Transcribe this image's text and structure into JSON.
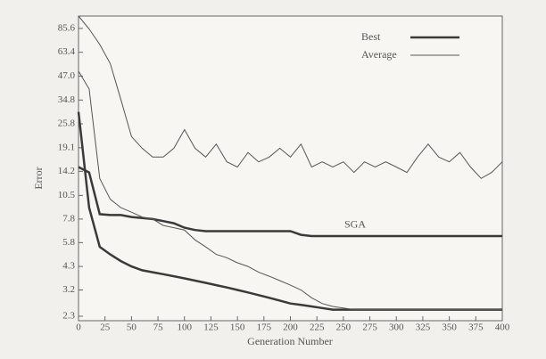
{
  "chart_data": {
    "type": "line",
    "log_y": true,
    "xlabel": "Generation Number",
    "ylabel": "Error",
    "annotation": "SGA",
    "x": [
      0,
      10,
      20,
      30,
      40,
      50,
      60,
      70,
      80,
      90,
      100,
      110,
      120,
      130,
      140,
      150,
      160,
      170,
      180,
      190,
      200,
      210,
      220,
      230,
      240,
      250,
      260,
      270,
      280,
      290,
      300,
      310,
      320,
      330,
      340,
      350,
      360,
      370,
      380,
      390,
      400
    ],
    "xlim": [
      0,
      400
    ],
    "xticks": [
      0,
      25,
      50,
      75,
      100,
      125,
      150,
      175,
      200,
      225,
      250,
      275,
      300,
      325,
      350,
      375,
      400
    ],
    "ylim": [
      2.3,
      100
    ],
    "yticks": [
      2.3,
      3.2,
      4.3,
      5.8,
      7.8,
      10.5,
      14.2,
      19.1,
      25.8,
      34.8,
      {
        "value": 47,
        "label": "47.0"
      },
      63.4,
      85.6
    ],
    "series": [
      {
        "name": "Best",
        "color": "#3a3a3a",
        "width": 2.5,
        "values": [
          15,
          14,
          8.3,
          8.2,
          8.2,
          8.0,
          7.9,
          7.8,
          7.6,
          7.4,
          7.0,
          6.8,
          6.7,
          6.7,
          6.7,
          6.7,
          6.7,
          6.7,
          6.7,
          6.7,
          6.7,
          6.4,
          6.3,
          6.3,
          6.3,
          6.3,
          6.3,
          6.3,
          6.3,
          6.3,
          6.3,
          6.3,
          6.3,
          6.3,
          6.3,
          6.3,
          6.3,
          6.3,
          6.3,
          6.3,
          6.3
        ]
      },
      {
        "name": "Average",
        "color": "#555555",
        "width": 1,
        "values": [
          100,
          85,
          70,
          55,
          35,
          22,
          19,
          17,
          17,
          19,
          24,
          19,
          17,
          20,
          16,
          15,
          18,
          16,
          17,
          19,
          17,
          20,
          15,
          16,
          15,
          16,
          14,
          16,
          15,
          16,
          15,
          14,
          17,
          20,
          17,
          16,
          18,
          15,
          13,
          14,
          16
        ]
      },
      {
        "color": "#3a3a3a",
        "width": 2.5,
        "values": [
          30,
          9,
          5.5,
          5,
          4.6,
          4.3,
          4.1,
          4.0,
          3.9,
          3.8,
          3.7,
          3.6,
          3.5,
          3.4,
          3.3,
          3.2,
          3.1,
          3.0,
          2.9,
          2.8,
          2.7,
          2.65,
          2.6,
          2.55,
          2.5,
          2.5,
          2.5,
          2.5,
          2.5,
          2.5,
          2.5,
          2.5,
          2.5,
          2.5,
          2.5,
          2.5,
          2.5,
          2.5,
          2.5,
          2.5,
          2.5
        ]
      },
      {
        "color": "#555555",
        "width": 1,
        "values": [
          50,
          40,
          13,
          10,
          9,
          8.5,
          8,
          7.8,
          7.2,
          7,
          6.8,
          6,
          5.5,
          5,
          4.8,
          4.5,
          4.3,
          4,
          3.8,
          3.6,
          3.4,
          3.2,
          2.9,
          2.7,
          2.6,
          2.55,
          2.5,
          2.5,
          2.5,
          2.5,
          2.5,
          2.5,
          2.5,
          2.5,
          2.5,
          2.5,
          2.5,
          2.5,
          2.5,
          2.5,
          2.5
        ]
      }
    ]
  }
}
